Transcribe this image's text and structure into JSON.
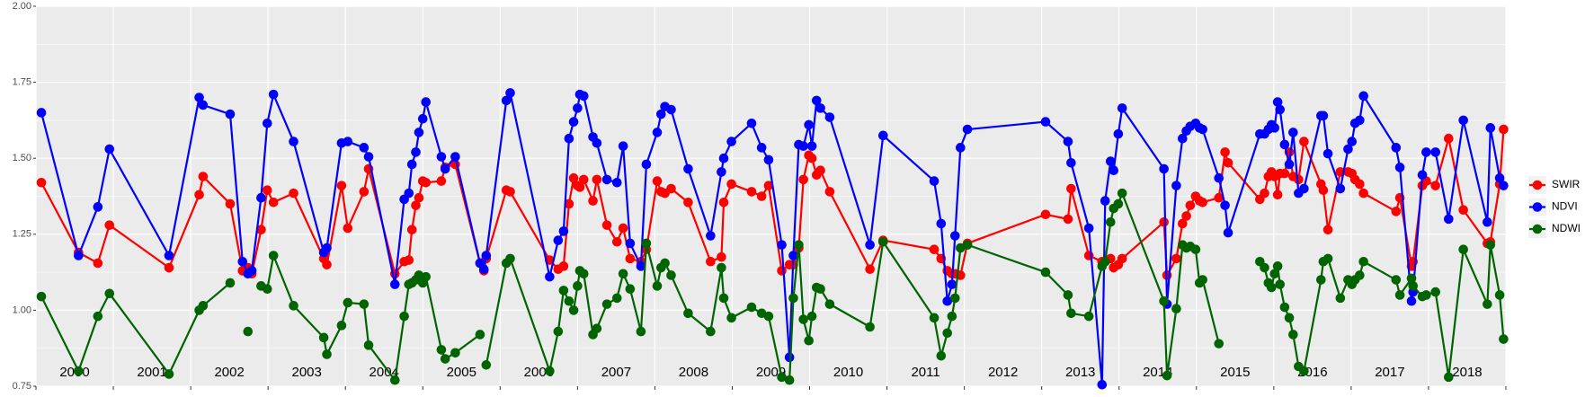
{
  "chart_data": {
    "type": "line",
    "x": [
      2000.07,
      2000.55,
      2000.8,
      2000.95,
      2001.72,
      2002.11,
      2002.16,
      2002.51,
      2002.67,
      2002.74,
      2002.79,
      2002.91,
      2002.99,
      2003.07,
      2003.33,
      2003.72,
      2003.76,
      2003.95,
      2004.03,
      2004.24,
      2004.3,
      2004.64,
      2004.76,
      2004.82,
      2004.86,
      2004.91,
      2004.95,
      2005.0,
      2005.04,
      2005.24,
      2005.29,
      2005.42,
      2005.74,
      2005.79,
      2005.82,
      2006.08,
      2006.13,
      2006.64,
      2006.75,
      2006.82,
      2006.89,
      2006.95,
      2007.0,
      2007.03,
      2007.08,
      2007.2,
      2007.25,
      2007.38,
      2007.51,
      2007.59,
      2007.68,
      2007.82,
      2007.89,
      2008.03,
      2008.08,
      2008.13,
      2008.21,
      2008.43,
      2008.72,
      2008.86,
      2008.89,
      2008.99,
      2009.25,
      2009.38,
      2009.47,
      2009.64,
      2009.74,
      2009.79,
      2009.86,
      2009.92,
      2009.99,
      2010.03,
      2010.09,
      2010.14,
      2010.26,
      2010.78,
      2010.95,
      2011.61,
      2011.7,
      2011.78,
      2011.84,
      2011.88,
      2011.95,
      2012.04,
      2013.05,
      2013.34,
      2013.38,
      2013.61,
      2013.78,
      2013.82,
      2013.89,
      2013.93,
      2013.99,
      2014.04,
      2014.58,
      2014.62,
      2014.74,
      2014.82,
      2014.87,
      2014.92,
      2014.99,
      2015.04,
      2015.08,
      2015.29,
      2015.37,
      2015.41,
      2015.82,
      2015.88,
      2015.93,
      2015.97,
      2016.01,
      2016.05,
      2016.08,
      2016.14,
      2016.2,
      2016.25,
      2016.32,
      2016.39,
      2016.61,
      2016.64,
      2016.7,
      2016.86,
      2016.96,
      2017.01,
      2017.05,
      2017.11,
      2017.16,
      2017.58,
      2017.63,
      2017.78,
      2017.8,
      2017.92,
      2017.97,
      2018.09,
      2018.26,
      2018.45,
      2018.76,
      2018.8,
      2018.92,
      2018.97
    ],
    "series": [
      {
        "name": "SWIR",
        "color": "#ff0000",
        "values": [
          1.42,
          1.19,
          1.155,
          1.28,
          1.14,
          1.38,
          1.44,
          1.35,
          1.13,
          1.14,
          1.12,
          1.265,
          1.395,
          1.355,
          1.385,
          1.17,
          1.15,
          1.41,
          1.27,
          1.39,
          1.465,
          1.12,
          1.16,
          1.165,
          1.265,
          1.345,
          1.37,
          1.425,
          1.42,
          1.425,
          1.47,
          1.48,
          1.155,
          1.13,
          1.17,
          1.395,
          1.39,
          1.165,
          1.135,
          1.145,
          1.35,
          1.435,
          1.41,
          1.405,
          1.43,
          1.36,
          1.43,
          1.28,
          1.225,
          1.27,
          1.17,
          1.16,
          1.2,
          1.425,
          1.39,
          1.385,
          1.4,
          1.355,
          1.16,
          1.175,
          1.355,
          1.415,
          1.39,
          1.375,
          1.41,
          1.13,
          1.15,
          1.15,
          1.205,
          1.43,
          1.51,
          1.5,
          1.445,
          1.46,
          1.39,
          1.135,
          1.23,
          1.2,
          1.17,
          1.13,
          1.12,
          1.12,
          1.115,
          1.22,
          1.315,
          1.3,
          1.4,
          1.18,
          1.16,
          1.16,
          1.17,
          1.14,
          1.15,
          1.17,
          1.29,
          1.115,
          1.17,
          1.285,
          1.31,
          1.345,
          1.375,
          1.36,
          1.355,
          1.37,
          1.52,
          1.485,
          1.365,
          1.385,
          1.44,
          1.455,
          1.44,
          1.38,
          1.45,
          1.45,
          1.52,
          1.44,
          1.43,
          1.555,
          1.415,
          1.395,
          1.265,
          1.455,
          1.455,
          1.45,
          1.43,
          1.415,
          1.385,
          1.325,
          1.37,
          1.145,
          1.16,
          1.41,
          1.425,
          1.41,
          1.565,
          1.33,
          1.22,
          1.225,
          1.415,
          1.595
        ]
      },
      {
        "name": "NDVI",
        "color": "#0000ff",
        "values": [
          1.65,
          1.18,
          1.34,
          1.53,
          1.18,
          1.7,
          1.675,
          1.645,
          1.16,
          1.12,
          1.13,
          1.37,
          1.615,
          1.71,
          1.555,
          1.19,
          1.205,
          1.55,
          1.555,
          1.535,
          1.505,
          1.085,
          1.365,
          1.385,
          1.48,
          1.52,
          1.585,
          1.63,
          1.685,
          1.505,
          1.465,
          1.505,
          1.155,
          1.135,
          1.18,
          1.69,
          1.715,
          1.11,
          1.23,
          1.26,
          1.565,
          1.62,
          1.665,
          1.71,
          1.705,
          1.57,
          1.55,
          1.43,
          1.42,
          1.54,
          1.22,
          1.145,
          1.48,
          1.585,
          1.645,
          1.67,
          1.66,
          1.465,
          1.245,
          1.455,
          1.5,
          1.555,
          1.615,
          1.535,
          1.495,
          1.215,
          0.845,
          1.18,
          1.545,
          1.54,
          1.61,
          1.54,
          1.69,
          1.665,
          1.635,
          1.215,
          1.575,
          1.425,
          1.285,
          1.03,
          1.085,
          1.245,
          1.535,
          1.595,
          1.62,
          1.555,
          1.485,
          1.27,
          0.755,
          1.36,
          1.49,
          1.46,
          1.58,
          1.665,
          1.465,
          1.02,
          1.41,
          1.565,
          1.59,
          1.605,
          1.615,
          1.6,
          1.595,
          1.435,
          1.345,
          1.255,
          1.58,
          1.58,
          1.595,
          1.61,
          1.6,
          1.685,
          1.66,
          1.545,
          1.48,
          1.585,
          1.385,
          1.4,
          1.64,
          1.64,
          1.515,
          1.4,
          1.53,
          1.555,
          1.615,
          1.625,
          1.705,
          1.535,
          1.47,
          1.03,
          1.06,
          1.445,
          1.52,
          1.52,
          1.3,
          1.625,
          1.29,
          1.6,
          1.435,
          1.41
        ]
      },
      {
        "name": "NDWI",
        "color": "#006400",
        "values": [
          1.045,
          0.8,
          0.98,
          1.055,
          0.79,
          1.0,
          1.015,
          1.09,
          null,
          0.93,
          null,
          1.08,
          1.07,
          1.18,
          1.015,
          0.91,
          0.855,
          0.95,
          1.025,
          1.02,
          0.885,
          0.77,
          0.98,
          1.085,
          1.09,
          1.1,
          1.115,
          1.09,
          1.11,
          0.87,
          0.84,
          0.86,
          0.92,
          null,
          0.82,
          1.155,
          1.17,
          0.8,
          0.93,
          1.065,
          1.03,
          1.0,
          1.08,
          1.13,
          1.12,
          0.92,
          0.94,
          1.02,
          1.04,
          1.12,
          1.07,
          0.93,
          1.22,
          1.08,
          1.14,
          1.155,
          1.115,
          0.99,
          0.93,
          1.14,
          1.04,
          0.975,
          1.01,
          0.99,
          0.98,
          0.78,
          0.77,
          1.04,
          1.215,
          0.97,
          0.9,
          0.98,
          1.075,
          1.07,
          1.02,
          0.945,
          1.225,
          0.975,
          0.85,
          0.925,
          0.98,
          1.04,
          1.205,
          1.215,
          1.125,
          1.05,
          0.99,
          0.98,
          1.145,
          1.16,
          1.29,
          1.335,
          1.35,
          1.385,
          1.03,
          0.785,
          1.005,
          1.215,
          1.205,
          1.21,
          1.2,
          1.09,
          1.1,
          0.89,
          null,
          null,
          1.16,
          1.14,
          1.09,
          1.075,
          1.12,
          1.145,
          1.085,
          1.01,
          0.975,
          0.92,
          0.815,
          0.8,
          1.1,
          1.16,
          1.17,
          1.04,
          1.1,
          1.085,
          1.1,
          1.115,
          1.16,
          1.1,
          1.05,
          1.105,
          1.08,
          1.045,
          1.05,
          1.06,
          0.78,
          1.2,
          1.02,
          1.215,
          1.05,
          0.905
        ]
      }
    ],
    "xlim": [
      2000,
      2019
    ],
    "xticks": [
      2000,
      2001,
      2002,
      2003,
      2004,
      2005,
      2006,
      2007,
      2008,
      2009,
      2010,
      2011,
      2012,
      2013,
      2014,
      2015,
      2016,
      2017,
      2018,
      2019
    ],
    "year_labels": [
      "2000",
      "2001",
      "2002",
      "2003",
      "2004",
      "2005",
      "2006",
      "2007",
      "2008",
      "2009",
      "2010",
      "2011",
      "2012",
      "2013",
      "2014",
      "2015",
      "2016",
      "2017",
      "2018"
    ],
    "ylim": [
      0.75,
      2.0
    ],
    "yticks": [
      {
        "value": 0.75,
        "label": "0.75"
      },
      {
        "value": 1.0,
        "label": "1.00"
      },
      {
        "value": 1.25,
        "label": "1.25"
      },
      {
        "value": 1.5,
        "label": "1.50"
      },
      {
        "value": 1.75,
        "label": "1.75"
      },
      {
        "value": 2.0,
        "label": "2.00"
      }
    ],
    "grid": true,
    "legend": "right"
  }
}
